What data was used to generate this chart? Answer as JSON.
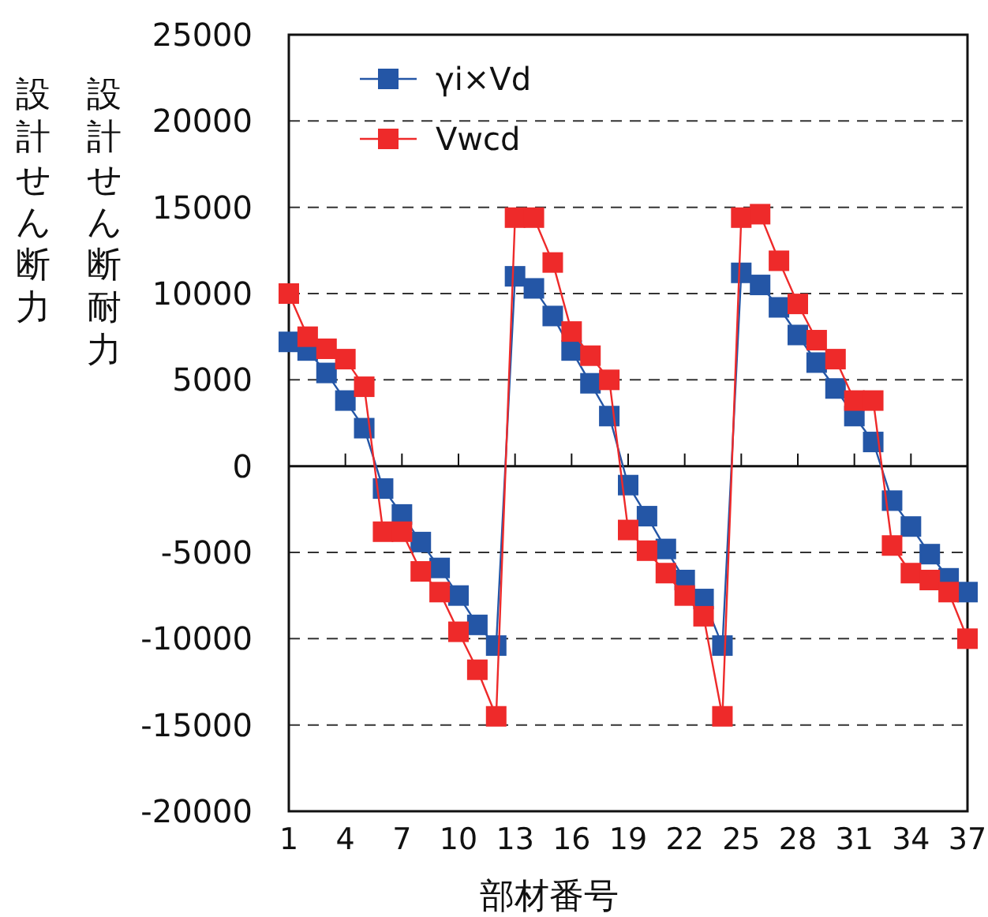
{
  "chart_data": {
    "type": "line",
    "xlabel": "部材番号",
    "ylabel": "設計せん断力",
    "annotations": [
      "設計せん断耐力"
    ],
    "x": [
      1,
      2,
      3,
      4,
      5,
      6,
      7,
      8,
      9,
      10,
      11,
      12,
      13,
      14,
      15,
      16,
      17,
      18,
      19,
      20,
      21,
      22,
      23,
      24,
      25,
      26,
      27,
      28,
      29,
      30,
      31,
      32,
      33,
      34,
      35,
      36,
      37
    ],
    "xlim": [
      1,
      37
    ],
    "xticks": [
      1,
      4,
      7,
      10,
      13,
      16,
      19,
      22,
      25,
      28,
      31,
      34,
      37
    ],
    "ylim": [
      -20000,
      25000
    ],
    "yticks": [
      -20000,
      -15000,
      -10000,
      -5000,
      0,
      5000,
      10000,
      15000,
      20000,
      25000
    ],
    "grid": "y",
    "legend": "top left",
    "marker": "square",
    "line_style": "solid",
    "series": [
      {
        "name": "γi×Vd",
        "color": "#2456a6",
        "values": [
          7200,
          6700,
          5400,
          3800,
          2200,
          -1300,
          -2800,
          -4400,
          -5900,
          -7500,
          -9200,
          -10400,
          11000,
          10300,
          8700,
          6700,
          4800,
          2900,
          -1100,
          -2900,
          -4800,
          -6600,
          -7700,
          -10400,
          11200,
          10500,
          9200,
          7600,
          6000,
          4500,
          2900,
          1400,
          -2000,
          -3500,
          -5100,
          -6500,
          -7300
        ]
      },
      {
        "name": "Vwcd",
        "color": "#ee2a2a",
        "values": [
          10000,
          7500,
          6800,
          6200,
          4600,
          -3800,
          -3800,
          -6100,
          -7300,
          -9600,
          -11800,
          -14500,
          14400,
          14400,
          11800,
          7800,
          6400,
          5000,
          -3700,
          -4900,
          -6200,
          -7500,
          -8700,
          -14500,
          14400,
          14600,
          11900,
          9400,
          7300,
          6200,
          3800,
          3800,
          -4600,
          -6200,
          -6600,
          -7300,
          -10000
        ]
      }
    ]
  }
}
